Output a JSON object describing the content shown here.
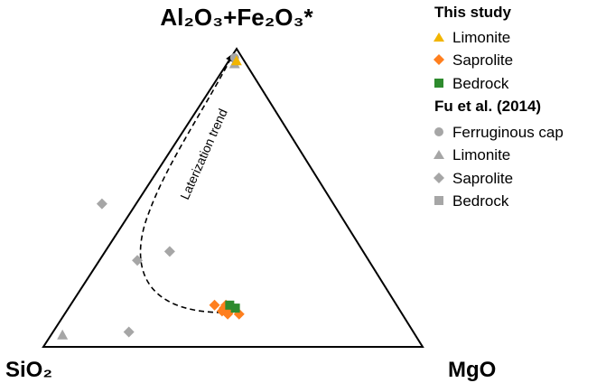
{
  "chart_data": {
    "type": "scatter",
    "subtype": "ternary",
    "vertices": {
      "top": "Al₂O₃+Fe₂O₃*",
      "left": "SiO₂",
      "right": "MgO"
    },
    "groups": [
      {
        "heading": "This study",
        "series": [
          {
            "name": "Limonite",
            "marker": "triangle",
            "color": "#f2b500",
            "points": [
              {
                "sio2": 2,
                "al2o3_fe2o3": 96,
                "mgo": 2
              }
            ]
          },
          {
            "name": "Saprolite",
            "marker": "diamond",
            "color": "#ff7f1e",
            "points": [
              {
                "sio2": 47,
                "al2o3_fe2o3": 12,
                "mgo": 41
              },
              {
                "sio2": 45,
                "al2o3_fe2o3": 12,
                "mgo": 43
              },
              {
                "sio2": 46,
                "al2o3_fe2o3": 13,
                "mgo": 41
              },
              {
                "sio2": 44,
                "al2o3_fe2o3": 13,
                "mgo": 43
              },
              {
                "sio2": 48,
                "al2o3_fe2o3": 14,
                "mgo": 38
              },
              {
                "sio2": 45,
                "al2o3_fe2o3": 14,
                "mgo": 41
              },
              {
                "sio2": 46,
                "al2o3_fe2o3": 11,
                "mgo": 43
              },
              {
                "sio2": 43,
                "al2o3_fe2o3": 11,
                "mgo": 46
              }
            ]
          },
          {
            "name": "Bedrock",
            "marker": "square",
            "color": "#2e8b2e",
            "points": [
              {
                "sio2": 44,
                "al2o3_fe2o3": 14,
                "mgo": 42
              },
              {
                "sio2": 43,
                "al2o3_fe2o3": 13,
                "mgo": 44
              }
            ]
          }
        ]
      },
      {
        "heading": "Fu et al. (2014)",
        "series": [
          {
            "name": "Ferruginous cap",
            "marker": "circle",
            "color": "#a6a6a6",
            "points": [
              {
                "sio2": 2,
                "al2o3_fe2o3": 97,
                "mgo": 1
              }
            ]
          },
          {
            "name": "Limonite",
            "marker": "triangle",
            "color": "#a6a6a6",
            "points": [
              {
                "sio2": 3,
                "al2o3_fe2o3": 95,
                "mgo": 2
              },
              {
                "sio2": 93,
                "al2o3_fe2o3": 4,
                "mgo": 3
              }
            ]
          },
          {
            "name": "Saprolite",
            "marker": "diamond",
            "color": "#a6a6a6",
            "points": [
              {
                "sio2": 61,
                "al2o3_fe2o3": 48,
                "mgo": -9
              },
              {
                "sio2": 61,
                "al2o3_fe2o3": 29,
                "mgo": 10
              },
              {
                "sio2": 51,
                "al2o3_fe2o3": 32,
                "mgo": 17
              },
              {
                "sio2": 75,
                "al2o3_fe2o3": 5,
                "mgo": 20
              }
            ]
          },
          {
            "name": "Bedrock",
            "marker": "square",
            "color": "#a6a6a6",
            "points": []
          }
        ]
      }
    ],
    "annotations": [
      {
        "text": "Laterization trend"
      }
    ]
  }
}
